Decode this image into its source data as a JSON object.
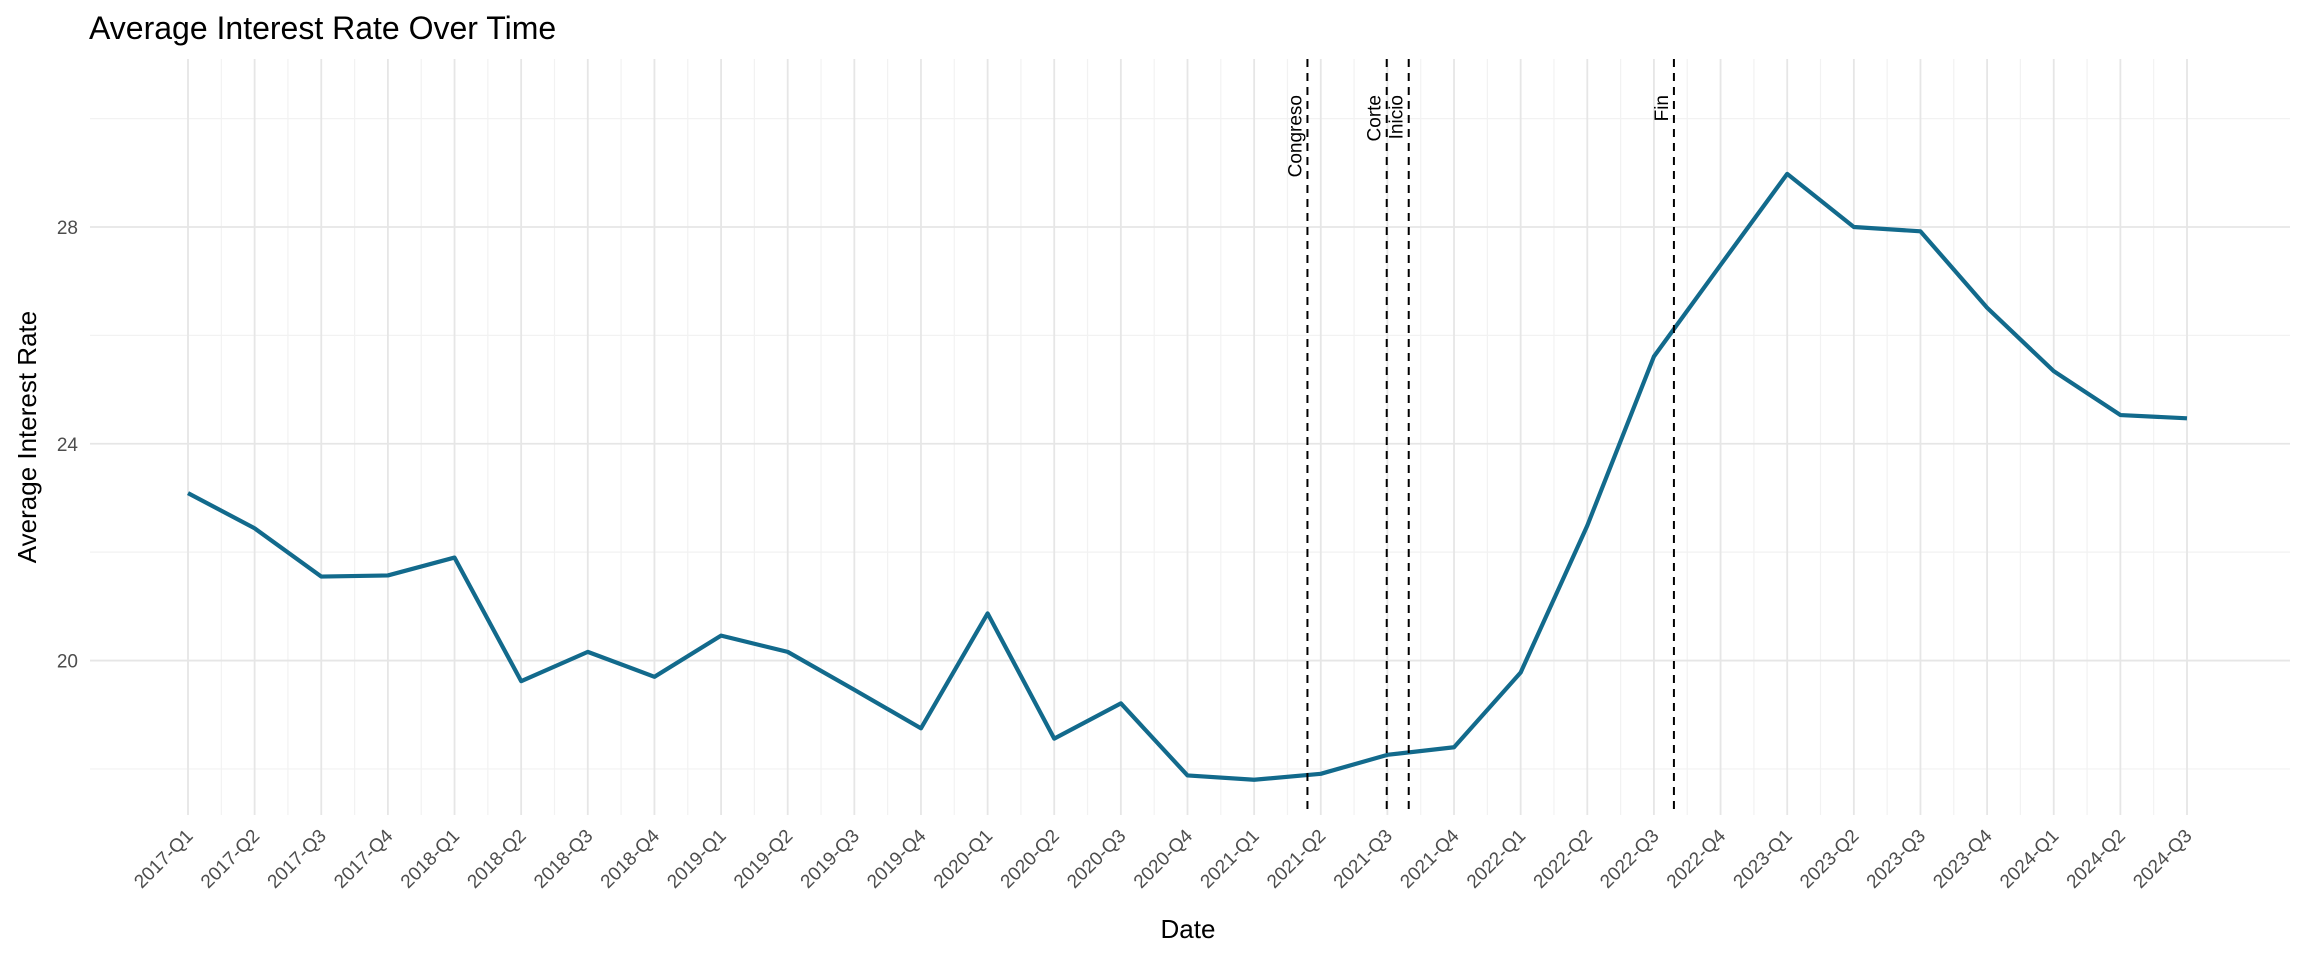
{
  "chart_data": {
    "type": "line",
    "title": "Average Interest Rate Over Time",
    "x_label": "Date",
    "y_label": "Average Interest Rate",
    "categories": [
      "2017-Q1",
      "2017-Q2",
      "2017-Q3",
      "2017-Q4",
      "2018-Q1",
      "2018-Q2",
      "2018-Q3",
      "2018-Q4",
      "2019-Q1",
      "2019-Q2",
      "2019-Q3",
      "2019-Q4",
      "2020-Q1",
      "2020-Q2",
      "2020-Q3",
      "2020-Q4",
      "2021-Q1",
      "2021-Q2",
      "2021-Q3",
      "2021-Q4",
      "2022-Q1",
      "2022-Q2",
      "2022-Q3",
      "2022-Q4",
      "2023-Q1",
      "2023-Q2",
      "2023-Q3",
      "2023-Q4",
      "2024-Q1",
      "2024-Q2",
      "2024-Q3"
    ],
    "series": [
      {
        "name": "Average Interest Rate",
        "color": "#126a8c",
        "values": [
          23.09,
          22.44,
          21.55,
          21.57,
          21.9,
          19.62,
          20.16,
          19.7,
          20.46,
          20.16,
          19.46,
          18.75,
          20.87,
          18.56,
          19.21,
          17.88,
          17.8,
          17.91,
          18.26,
          18.4,
          19.78,
          22.49,
          25.61,
          27.3,
          28.98,
          28.0,
          27.92,
          26.51,
          25.34,
          24.53,
          24.47
        ]
      }
    ],
    "events": [
      {
        "label": "Congreso",
        "x": 16.8
      },
      {
        "label": "Corte",
        "x": 17.99
      },
      {
        "label": "Inicio",
        "x": 18.32
      },
      {
        "label": "Fin",
        "x": 22.3
      }
    ],
    "ylim": [
      17.15,
      31.1
    ],
    "yticks": [
      20,
      24,
      28
    ],
    "grid": true
  }
}
